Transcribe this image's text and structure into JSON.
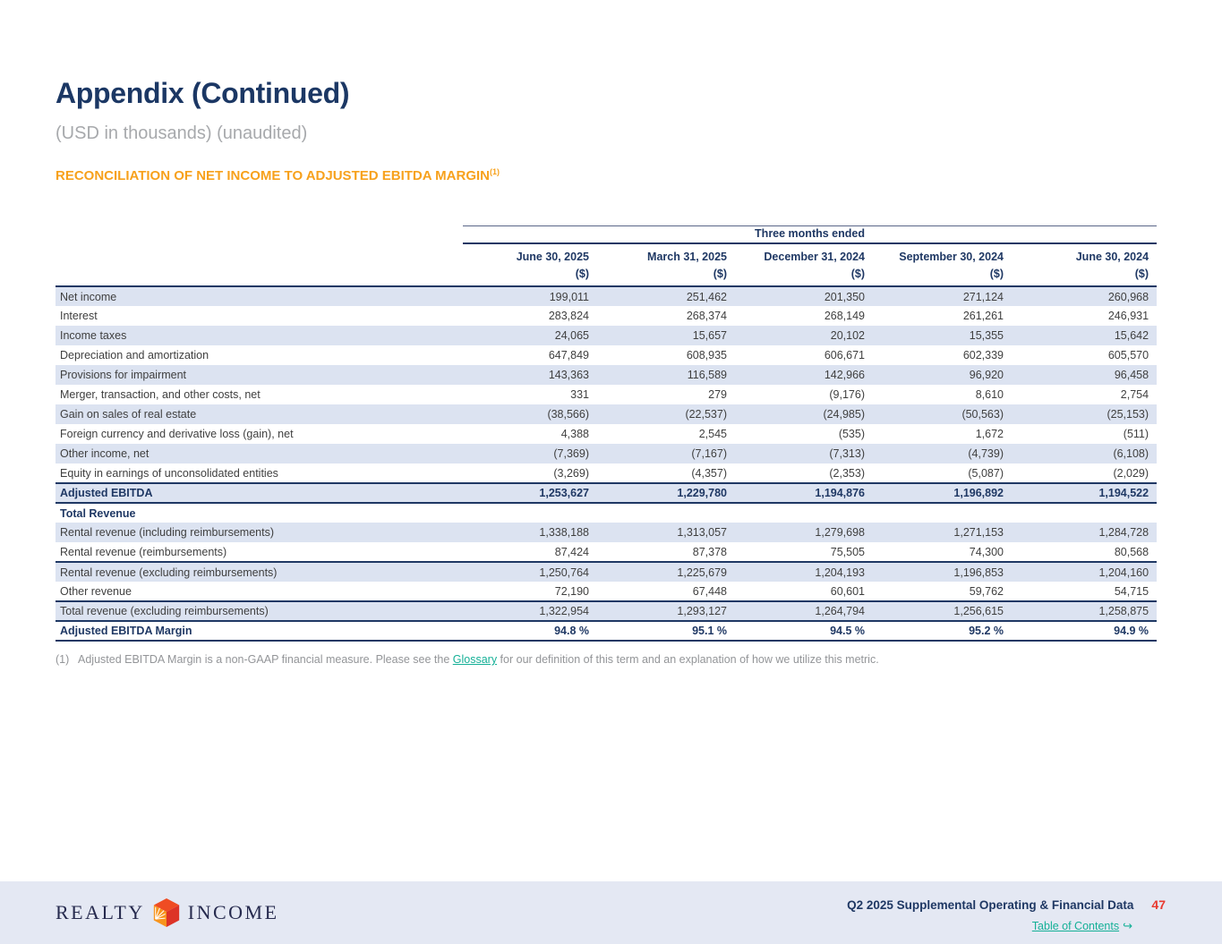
{
  "header": {
    "title": "Appendix (Continued)",
    "subtitle": "(USD in thousands) (unaudited)",
    "section_heading": "RECONCILIATION OF NET INCOME TO ADJUSTED EBITDA MARGIN",
    "section_ref": "(1)"
  },
  "table": {
    "group_header": "Three months ended",
    "columns": [
      "June 30, 2025",
      "March 31, 2025",
      "December 31, 2024",
      "September 30, 2024",
      "June 30, 2024"
    ],
    "units": [
      "($)",
      "($)",
      "($)",
      "($)",
      "($)"
    ],
    "rows": [
      {
        "label": "Net income",
        "values": [
          "199,011",
          "251,462",
          "201,350",
          "271,124",
          "260,968"
        ],
        "stripe": true
      },
      {
        "label": "Interest",
        "values": [
          "283,824",
          "268,374",
          "268,149",
          "261,261",
          "246,931"
        ],
        "stripe": false
      },
      {
        "label": "Income taxes",
        "values": [
          "24,065",
          "15,657",
          "20,102",
          "15,355",
          "15,642"
        ],
        "stripe": true
      },
      {
        "label": "Depreciation and amortization",
        "values": [
          "647,849",
          "608,935",
          "606,671",
          "602,339",
          "605,570"
        ],
        "stripe": false
      },
      {
        "label": "Provisions for impairment",
        "values": [
          "143,363",
          "116,589",
          "142,966",
          "96,920",
          "96,458"
        ],
        "stripe": true
      },
      {
        "label": "Merger, transaction, and other costs, net",
        "values": [
          "331",
          "279",
          "(9,176)",
          "8,610",
          "2,754"
        ],
        "stripe": false
      },
      {
        "label": "Gain on sales of real estate",
        "values": [
          "(38,566)",
          "(22,537)",
          "(24,985)",
          "(50,563)",
          "(25,153)"
        ],
        "stripe": true
      },
      {
        "label": "Foreign currency and derivative loss (gain), net",
        "values": [
          "4,388",
          "2,545",
          "(535)",
          "1,672",
          "(511)"
        ],
        "stripe": false
      },
      {
        "label": "Other income, net",
        "values": [
          "(7,369)",
          "(7,167)",
          "(7,313)",
          "(4,739)",
          "(6,108)"
        ],
        "stripe": true
      },
      {
        "label": "Equity in earnings of unconsolidated entities",
        "values": [
          "(3,269)",
          "(4,357)",
          "(2,353)",
          "(5,087)",
          "(2,029)"
        ],
        "stripe": false
      },
      {
        "label": "Adjusted EBITDA",
        "values": [
          "1,253,627",
          "1,229,780",
          "1,194,876",
          "1,196,892",
          "1,194,522"
        ],
        "stripe": true,
        "bold": true,
        "border_top": true,
        "border_bottom": true
      },
      {
        "label": "Total Revenue",
        "values": [
          "",
          "",
          "",
          "",
          ""
        ],
        "stripe": false,
        "bold": true
      },
      {
        "label": "Rental revenue (including reimbursements)",
        "values": [
          "1,338,188",
          "1,313,057",
          "1,279,698",
          "1,271,153",
          "1,284,728"
        ],
        "stripe": true
      },
      {
        "label": "Rental revenue (reimbursements)",
        "values": [
          "87,424",
          "87,378",
          "75,505",
          "74,300",
          "80,568"
        ],
        "stripe": false,
        "border_bottom": true
      },
      {
        "label": "Rental revenue (excluding reimbursements)",
        "values": [
          "1,250,764",
          "1,225,679",
          "1,204,193",
          "1,196,853",
          "1,204,160"
        ],
        "stripe": true
      },
      {
        "label": "Other revenue",
        "values": [
          "72,190",
          "67,448",
          "60,601",
          "59,762",
          "54,715"
        ],
        "stripe": false
      },
      {
        "label": "Total revenue (excluding reimbursements)",
        "values": [
          "1,322,954",
          "1,293,127",
          "1,264,794",
          "1,256,615",
          "1,258,875"
        ],
        "stripe": true,
        "border_top": true,
        "border_bottom": true
      },
      {
        "label": "Adjusted EBITDA Margin",
        "values": [
          "94.8 %",
          "95.1 %",
          "94.5 %",
          "95.2 %",
          "94.9 %"
        ],
        "stripe": false,
        "bold": true,
        "border_bottom": true
      }
    ]
  },
  "footnote": {
    "marker": "(1)",
    "text_before_link": "Adjusted EBITDA Margin is a non-GAAP financial measure. Please see the ",
    "link_text": "Glossary",
    "text_after_link": " for our definition of this term and an explanation of how we utilize this metric."
  },
  "footer": {
    "brand_word_1": "REALTY",
    "brand_word_2": "INCOME",
    "doc_title": "Q2 2025 Supplemental Operating & Financial Data",
    "page_number": "47",
    "toc_label": "Table of Contents",
    "toc_arrow": "↪"
  },
  "colors": {
    "navy": "#1f3864",
    "orange_heading": "#f7a11c",
    "row_stripe": "#dce3f1",
    "footer_background": "#e4e8f3",
    "page_number_red": "#e8392f",
    "link_teal": "#15b097",
    "body_text": "#3f3f3f",
    "footnote_gray": "#939598",
    "subtitle_gray": "#a7a9ac"
  }
}
